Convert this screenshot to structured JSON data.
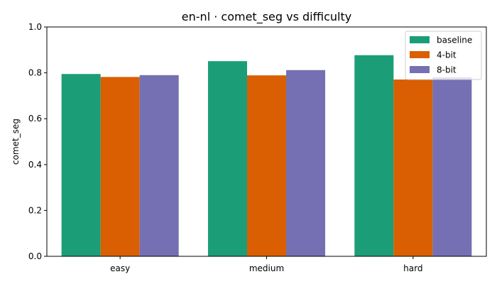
{
  "chart_data": {
    "type": "bar",
    "title": "en-nl · comet_seg vs difficulty",
    "xlabel": "",
    "ylabel": "comet_seg",
    "categories": [
      "easy",
      "medium",
      "hard"
    ],
    "series": [
      {
        "name": "baseline",
        "color": "#1b9e77",
        "values": [
          0.795,
          0.851,
          0.877
        ]
      },
      {
        "name": "4-bit",
        "color": "#d95f02",
        "values": [
          0.782,
          0.789,
          0.771
        ]
      },
      {
        "name": "8-bit",
        "color": "#7570b3",
        "values": [
          0.79,
          0.812,
          0.781
        ]
      }
    ],
    "ylim": [
      0,
      1.0
    ],
    "yticks": [
      "0.0",
      "0.2",
      "0.4",
      "0.6",
      "0.8",
      "1.0"
    ],
    "grid": false,
    "legend_position": "top-right"
  }
}
